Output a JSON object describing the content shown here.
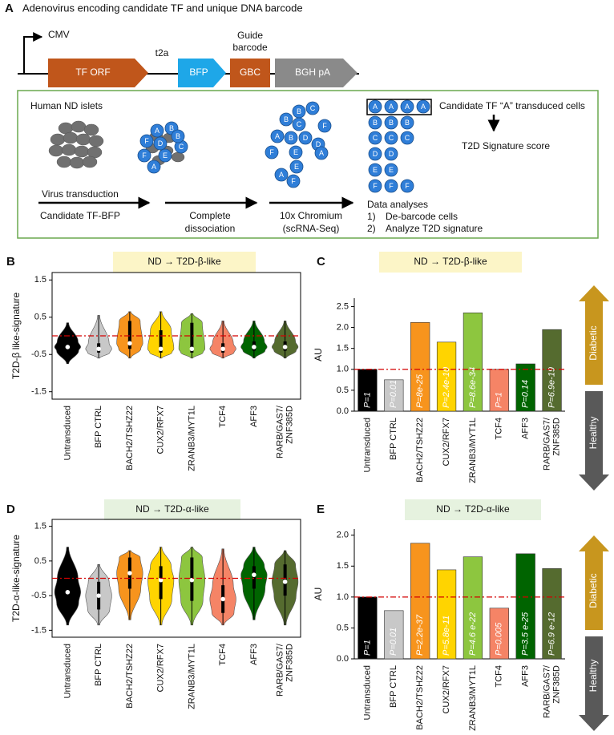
{
  "panel_a": {
    "label": "A",
    "title": "Adenovirus encoding candidate TF and unique DNA barcode",
    "promoter": "CMV",
    "linker": "t2a",
    "barcode_caption": [
      "Guide",
      "barcode"
    ],
    "segments": [
      "TF ORF",
      "BFP",
      "GBC",
      "BGH pA"
    ],
    "islets_label": "Human ND islets",
    "step1": [
      "Virus transduction",
      "Candidate TF-BFP"
    ],
    "step2": [
      "Complete",
      "dissociation"
    ],
    "step3": [
      "10x Chromium",
      "(scRNA-Seq)"
    ],
    "analysis": [
      "Data analyses",
      "1)",
      "De-barcode cells",
      "2)",
      "Analyze T2D signature"
    ],
    "transduced_label": "Candidate TF “A” transduced cells",
    "score_label": "T2D Signature score",
    "islet_cells": [
      "A",
      "B",
      "F",
      "D",
      "C",
      "E",
      "F",
      "B",
      "A"
    ],
    "dissociated_cells": [
      "B",
      "C",
      "B",
      "C",
      "F",
      "A",
      "B",
      "D",
      "D",
      "F",
      "E",
      "A",
      "E",
      "A",
      "F"
    ],
    "sorted_cells": [
      "A",
      "A",
      "A",
      "A",
      "B",
      "B",
      "B",
      "C",
      "C",
      "C",
      "D",
      "D",
      "E",
      "E",
      "F",
      "F",
      "F"
    ]
  },
  "chart_data": [
    {
      "type": "violin",
      "panel": "B",
      "title": "ND → T2D-β-like",
      "ylabel": "T2D-β like-signature",
      "categories": [
        "Untransduced",
        "BFP CTRL",
        "BACH2/TSHZ22",
        "CUX2/RFX7",
        "ZRANB3/MYT1L",
        "TCF4",
        "AFF3",
        "RARB/GAS7/\nZNF385D"
      ],
      "colors": [
        "#000000",
        "#c8c8c8",
        "#f7941d",
        "#ffd400",
        "#8dc63f",
        "#f58466",
        "#006400",
        "#556b2f"
      ],
      "min": [
        -0.75,
        -0.6,
        -0.6,
        -0.6,
        -0.6,
        -0.6,
        -0.6,
        -0.6
      ],
      "q1": [
        -0.4,
        -0.45,
        -0.35,
        -0.45,
        -0.45,
        -0.45,
        -0.4,
        -0.4
      ],
      "median": [
        -0.3,
        -0.35,
        -0.2,
        -0.35,
        -0.35,
        -0.35,
        -0.3,
        -0.3
      ],
      "q3": [
        -0.15,
        -0.2,
        0.4,
        0.15,
        0.35,
        -0.2,
        -0.15,
        -0.15
      ],
      "max": [
        0.35,
        0.55,
        0.65,
        0.65,
        0.6,
        0.4,
        0.4,
        0.4
      ],
      "ylim": [
        -1.7,
        1.7
      ],
      "yticks": [
        -1.5,
        -0.5,
        0.5,
        1.5
      ],
      "ref_line": 0
    },
    {
      "type": "bar",
      "panel": "C",
      "title": "ND → T2D-β-like",
      "ylabel": "AU",
      "categories": [
        "Untransduced",
        "BFP CTRL",
        "BACH2/TSHZ22",
        "CUX2/RFX7",
        "ZRANB3/MYT1L",
        "TCF4",
        "AFF3",
        "RARB/GAS7/\nZNF385D"
      ],
      "colors": [
        "#000000",
        "#c8c8c8",
        "#f7941d",
        "#ffd400",
        "#8dc63f",
        "#f58466",
        "#006400",
        "#556b2f"
      ],
      "values": [
        1.0,
        0.75,
        2.12,
        1.65,
        2.35,
        1.0,
        1.13,
        1.95
      ],
      "p_values": [
        "P=1",
        "P=0.01",
        "P=8e-25",
        "P=2.4e-10",
        "P=8.6e-34",
        "P=1",
        "P=0.14",
        "P=6.9e-19"
      ],
      "ylim": [
        0,
        2.7
      ],
      "yticks": [
        {
          "value": 0,
          "label": "0.0"
        },
        0.5,
        {
          "value": 1,
          "label": "1.0"
        },
        1.5,
        {
          "value": 2,
          "label": "2.0"
        },
        2.5
      ],
      "ref_line": 1,
      "arrow_labels": [
        "Diabetic",
        "Healthy"
      ]
    },
    {
      "type": "violin",
      "panel": "D",
      "title": "ND → T2D-α-like",
      "ylabel": "T2D-α-like-signature",
      "categories": [
        "Untransduced",
        "BFP CTRL",
        "BACH2/TSHZ22",
        "CUX2/RFX7",
        "ZRANB3/MYT1L",
        "TCF4",
        "AFF3",
        "RARB/GAS7/\nZNF385D"
      ],
      "colors": [
        "#000000",
        "#c8c8c8",
        "#f7941d",
        "#ffd400",
        "#8dc63f",
        "#f58466",
        "#006400",
        "#556b2f"
      ],
      "min": [
        -1.35,
        -1.35,
        -1.2,
        -1.35,
        -1.35,
        -1.35,
        -1.2,
        -1.35
      ],
      "q1": [
        -0.7,
        -0.9,
        -0.3,
        -0.6,
        -0.65,
        -1.0,
        -0.3,
        -0.5
      ],
      "median": [
        -0.4,
        -0.5,
        0.15,
        -0.05,
        -0.05,
        -0.6,
        0.1,
        -0.1
      ],
      "q3": [
        0,
        -0.1,
        0.6,
        0.35,
        0.6,
        -0.2,
        0.35,
        0.4
      ],
      "max": [
        0.9,
        0.4,
        0.8,
        0.9,
        0.9,
        0.85,
        0.9,
        0.8
      ],
      "ylim": [
        -1.7,
        1.7
      ],
      "yticks": [
        -1.5,
        -0.5,
        0.5,
        1.5
      ],
      "ref_line": 0
    },
    {
      "type": "bar",
      "panel": "E",
      "title": "ND → T2D-α-like",
      "ylabel": "AU",
      "categories": [
        "Untransduced",
        "BFP CTRL",
        "BACH2/TSHZ22",
        "CUX2/RFX7",
        "ZRANB3/MYT1L",
        "TCF4",
        "AFF3",
        "RARB/GAS7/\nZNF385D"
      ],
      "colors": [
        "#000000",
        "#c8c8c8",
        "#f7941d",
        "#ffd400",
        "#8dc63f",
        "#f58466",
        "#006400",
        "#556b2f"
      ],
      "values": [
        1.0,
        0.78,
        1.87,
        1.44,
        1.65,
        0.82,
        1.7,
        1.46
      ],
      "p_values": [
        "P=1",
        "P=0.01",
        "P=2.2e-37",
        "P=5.8e-11",
        "P=4.6 e-22",
        "P=0.005",
        "P=3.5 e-25",
        "P=6.9 e-12"
      ],
      "ylim": [
        0,
        2.1
      ],
      "yticks": [
        {
          "value": 0,
          "label": "0.0"
        },
        0.5,
        {
          "value": 1,
          "label": "1.0"
        },
        1.5,
        {
          "value": 2,
          "label": "2.0"
        }
      ],
      "ref_line": 1,
      "arrow_labels": [
        "Diabetic",
        "Healthy"
      ]
    }
  ]
}
